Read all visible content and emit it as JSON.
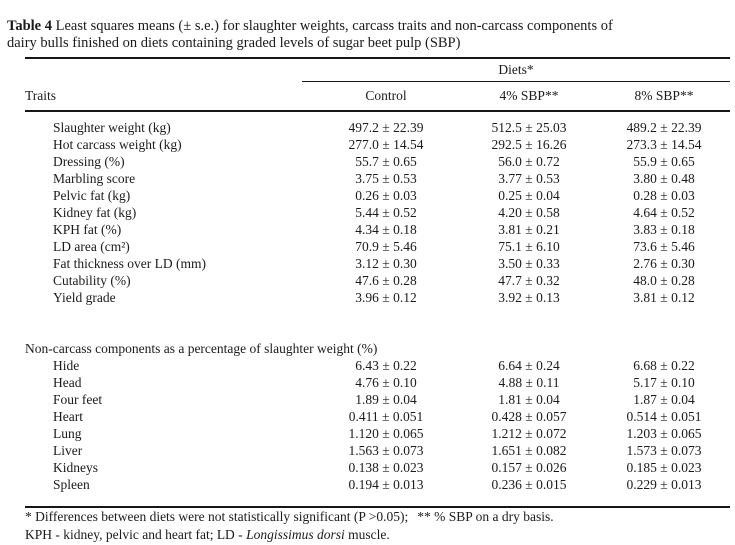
{
  "document": {
    "title": {
      "label": "Table 4",
      "line1": "Least squares means (± s.e.) for slaughter weights, carcass traits and non-carcass components of",
      "line2": "dairy bulls finished on diets containing graded levels of sugar beet pulp (SBP)"
    },
    "table": {
      "diets_header": "Diets*",
      "columns": [
        "Traits",
        "Control",
        "4% SBP**",
        "8% SBP**"
      ],
      "carcass_rows": [
        {
          "trait": "Slaughter weight (kg)",
          "control": "497.2 ± 22.39",
          "sbp4": "512.5 ± 25.03",
          "sbp8": "489.2 ± 22.39"
        },
        {
          "trait": "Hot carcass weight (kg)",
          "control": "277.0 ± 14.54",
          "sbp4": "292.5 ± 16.26",
          "sbp8": "273.3 ± 14.54"
        },
        {
          "trait": "Dressing (%)",
          "control": "55.7 ± 0.65",
          "sbp4": "56.0 ± 0.72",
          "sbp8": "55.9 ± 0.65"
        },
        {
          "trait": "Marbling score",
          "control": "3.75 ± 0.53",
          "sbp4": "3.77 ± 0.53",
          "sbp8": "3.80 ± 0.48"
        },
        {
          "trait": "Pelvic fat (kg)",
          "control": "0.26 ± 0.03",
          "sbp4": "0.25 ± 0.04",
          "sbp8": "0.28 ± 0.03"
        },
        {
          "trait": "Kidney fat (kg)",
          "control": "5.44 ± 0.52",
          "sbp4": "4.20 ± 0.58",
          "sbp8": "4.64 ± 0.52"
        },
        {
          "trait": "KPH fat (%)",
          "control": "4.34 ± 0.18",
          "sbp4": "3.81 ± 0.21",
          "sbp8": "3.83 ± 0.18"
        },
        {
          "trait": "LD area (cm²)",
          "control": "70.9 ± 5.46",
          "sbp4": "75.1 ± 6.10",
          "sbp8": "73.6 ± 5.46"
        },
        {
          "trait": "Fat thickness over LD (mm)",
          "control": "3.12 ± 0.30",
          "sbp4": "3.50 ± 0.33",
          "sbp8": "2.76 ± 0.30"
        },
        {
          "trait": "Cutability (%)",
          "control": "47.6 ± 0.28",
          "sbp4": "47.7 ± 0.32",
          "sbp8": "48.0 ± 0.28"
        },
        {
          "trait": "Yield grade",
          "control": "3.96 ± 0.12",
          "sbp4": "3.92 ± 0.13",
          "sbp8": "3.81 ± 0.12"
        }
      ],
      "section_header": "Non-carcass components as a percentage of slaughter weight (%)",
      "noncarcass_rows": [
        {
          "trait": "Hide",
          "control": "6.43 ± 0.22",
          "sbp4": "6.64 ± 0.24",
          "sbp8": "6.68 ± 0.22"
        },
        {
          "trait": "Head",
          "control": "4.76 ± 0.10",
          "sbp4": "4.88 ± 0.11",
          "sbp8": "5.17 ± 0.10"
        },
        {
          "trait": "Four feet",
          "control": "1.89 ± 0.04",
          "sbp4": "1.81 ± 0.04",
          "sbp8": "1.87 ± 0.04"
        },
        {
          "trait": "Heart",
          "control": "0.411 ± 0.051",
          "sbp4": "0.428 ± 0.057",
          "sbp8": "0.514 ± 0.051"
        },
        {
          "trait": "Lung",
          "control": "1.120 ± 0.065",
          "sbp4": "1.212 ± 0.072",
          "sbp8": "1.203 ± 0.065"
        },
        {
          "trait": "Liver",
          "control": "1.563 ± 0.073",
          "sbp4": "1.651 ± 0.082",
          "sbp8": "1.573 ± 0.073"
        },
        {
          "trait": "Kidneys",
          "control": "0.138 ± 0.023",
          "sbp4": "0.157 ± 0.026",
          "sbp8": "0.185 ± 0.023"
        },
        {
          "trait": "Spleen",
          "control": "0.194 ± 0.013",
          "sbp4": "0.236 ± 0.015",
          "sbp8": "0.229 ± 0.013"
        }
      ]
    },
    "footnotes": {
      "line1_a": "* Differences between diets were not statistically significant (P >0.05);",
      "line1_b": "** % SBP on a dry basis.",
      "line2_a": "KPH - kidney, pelvic and heart fat; LD - ",
      "line2_b": "Longissimus dorsi",
      "line2_c": " muscle."
    }
  }
}
